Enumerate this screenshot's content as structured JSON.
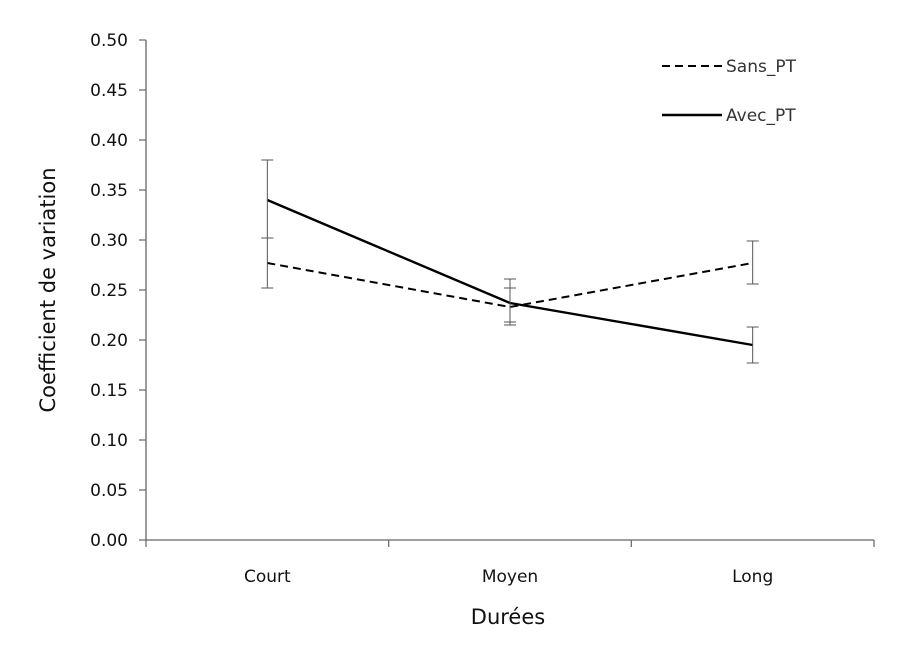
{
  "chart_data": {
    "type": "line",
    "title": "",
    "xlabel": "Durées",
    "ylabel": "Coefficient de variation",
    "categories": [
      "Court",
      "Moyen",
      "Long"
    ],
    "ylim": [
      0,
      0.5
    ],
    "yticks": [
      "0.00",
      "0.05",
      "0.10",
      "0.15",
      "0.20",
      "0.25",
      "0.30",
      "0.35",
      "0.40",
      "0.45",
      "0.50"
    ],
    "grid": false,
    "legend_position": "top-right",
    "series": [
      {
        "name": "Sans_PT",
        "style": "dashed",
        "color": "#000000",
        "values": [
          0.277,
          0.233,
          0.277
        ],
        "error_low": [
          0.252,
          0.215,
          0.256
        ],
        "error_high": [
          0.302,
          0.252,
          0.299
        ]
      },
      {
        "name": "Avec_PT",
        "style": "solid",
        "color": "#000000",
        "values": [
          0.34,
          0.237,
          0.195
        ],
        "error_low": [
          0.302,
          0.218,
          0.177
        ],
        "error_high": [
          0.38,
          0.261,
          0.213
        ]
      }
    ]
  }
}
